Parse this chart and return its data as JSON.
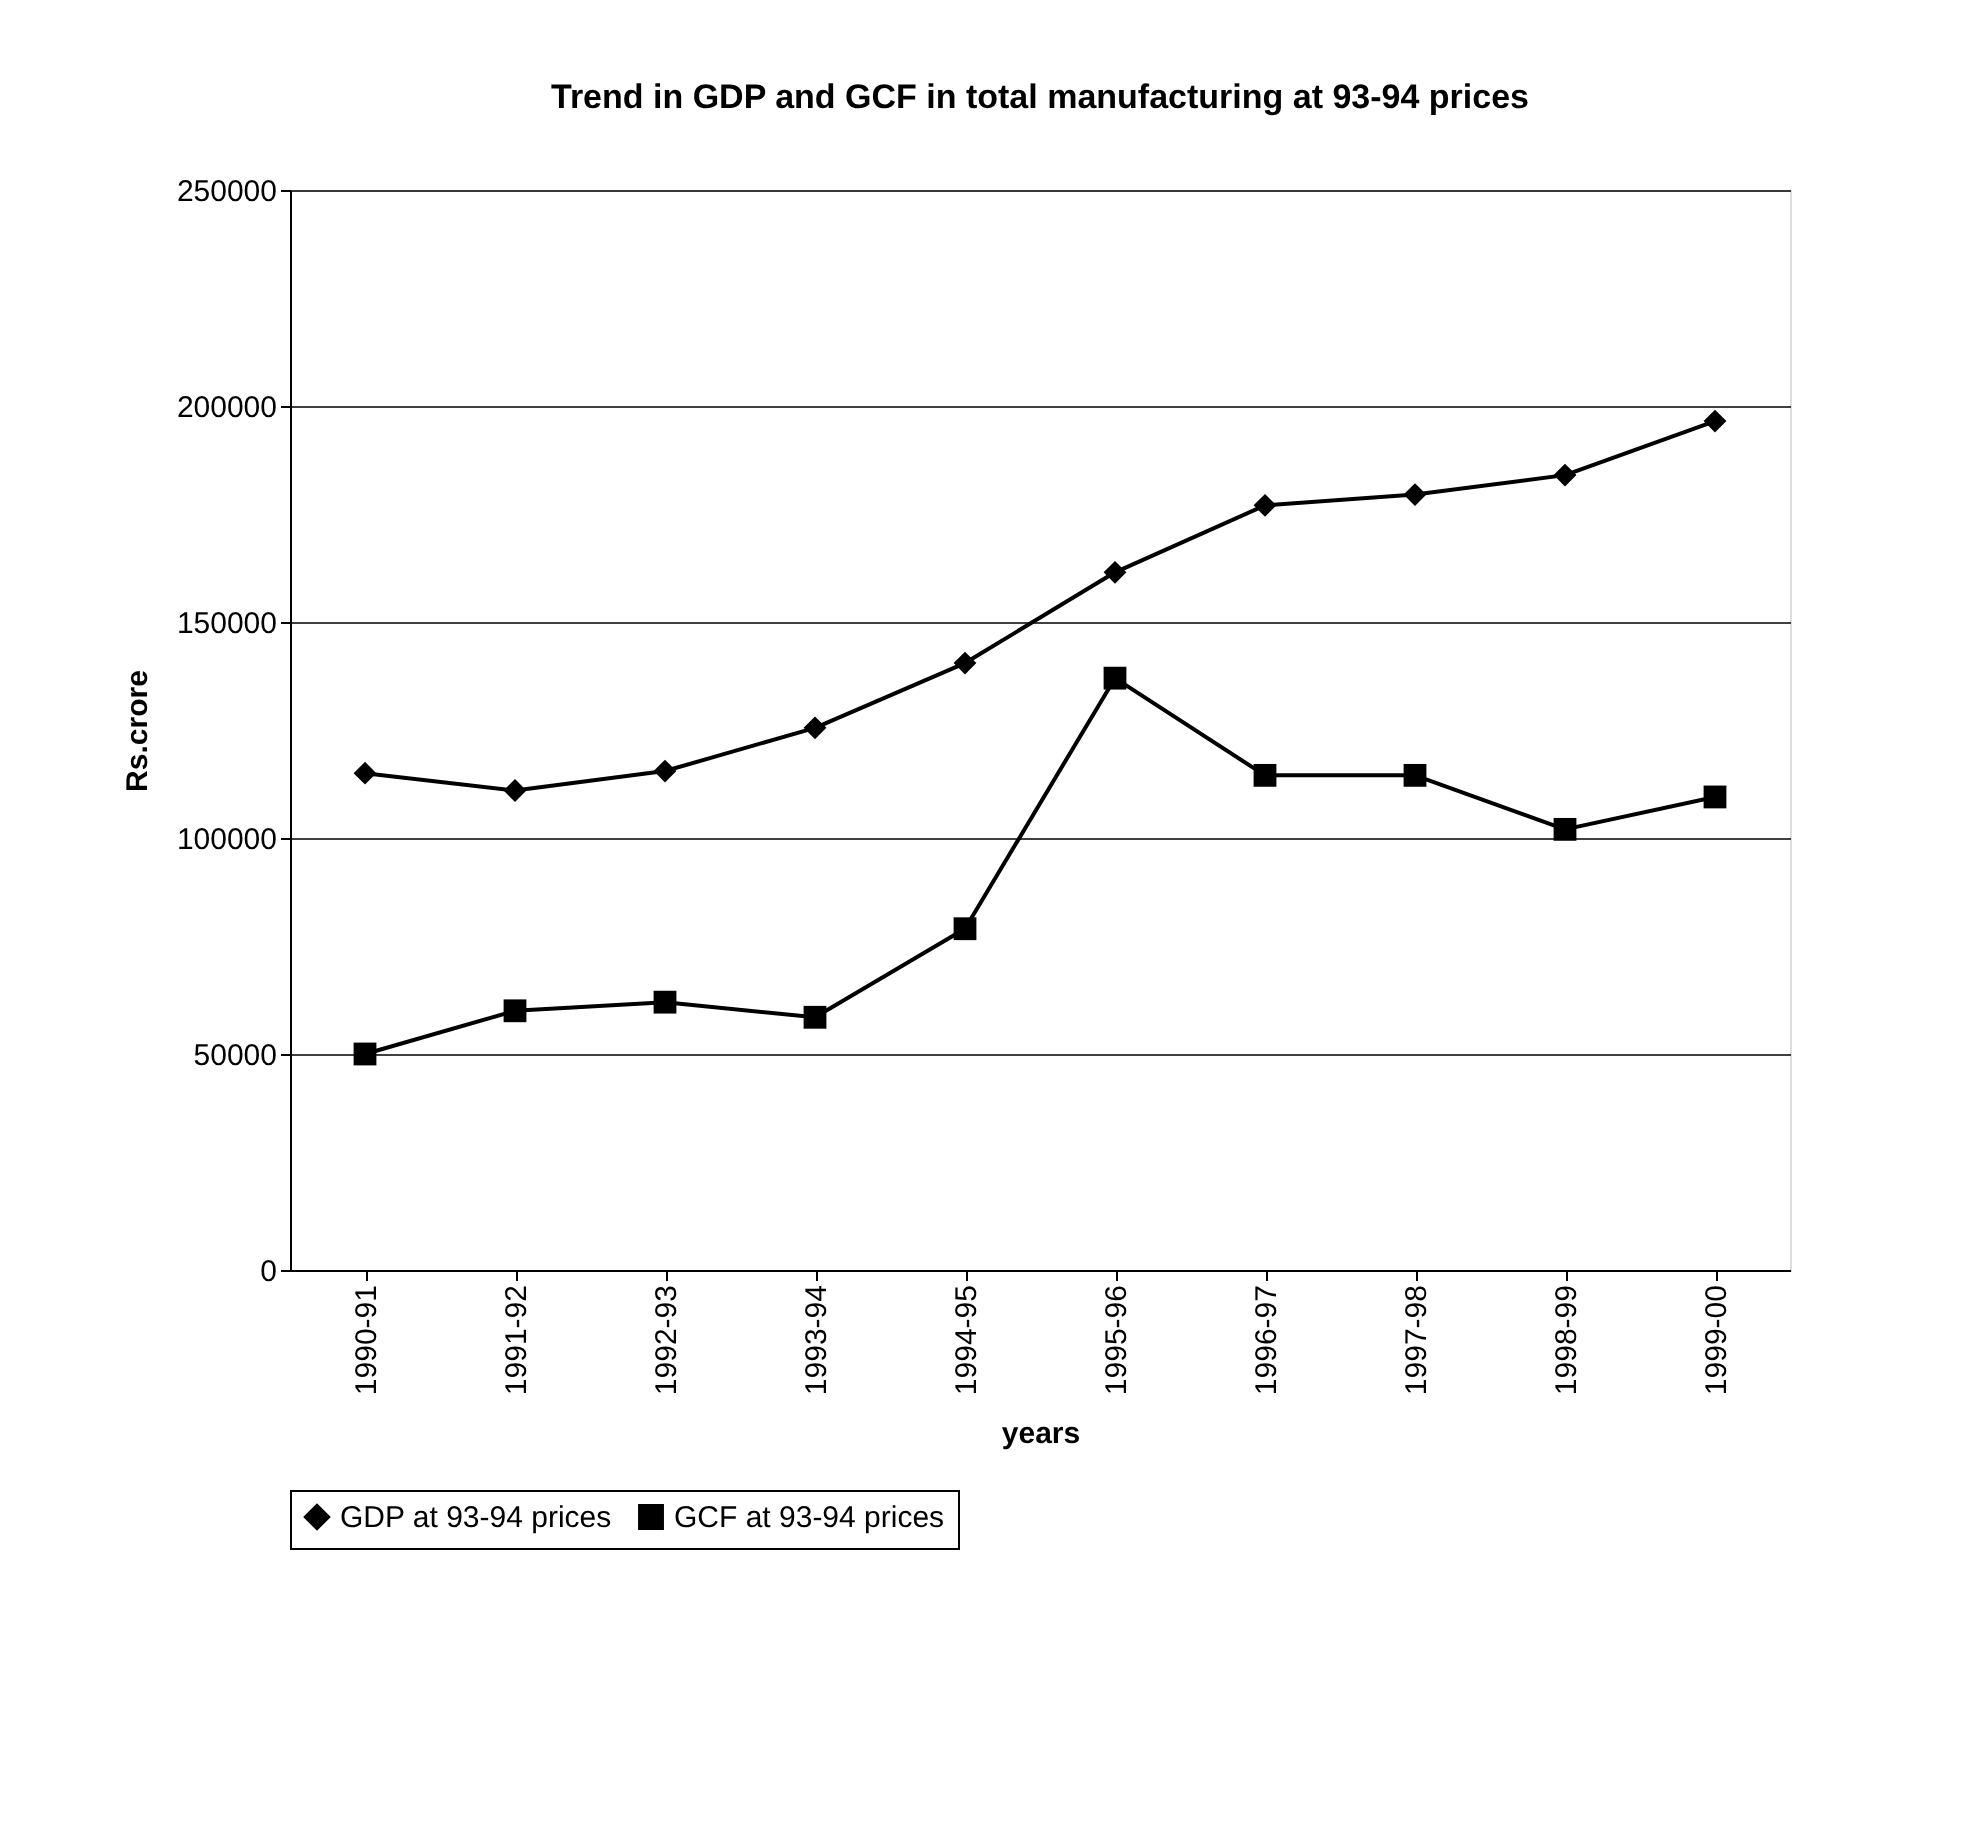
{
  "chart_data": {
    "type": "line",
    "title": "Trend in GDP and GCF in total manufacturing at 93-94 prices",
    "xlabel": "years",
    "ylabel": "Rs.crore",
    "categories": [
      "1990-91",
      "1991-92",
      "1992-93",
      "1993-94",
      "1994-95",
      "1995-96",
      "1996-97",
      "1997-98",
      "1998-99",
      "1999-00"
    ],
    "series": [
      {
        "name": "GDP at 93-94 prices",
        "color": "#000000",
        "marker": "diamond",
        "values": [
          115000,
          111000,
          115500,
          125500,
          140500,
          161500,
          177000,
          179500,
          184000,
          196500
        ]
      },
      {
        "name": "GCF at 93-94 prices",
        "color": "#000000",
        "marker": "square",
        "values": [
          50000,
          60000,
          62000,
          58500,
          79000,
          137000,
          114500,
          114500,
          102000,
          109500
        ]
      }
    ],
    "ylim": [
      0,
      250000
    ],
    "yticks": [
      0,
      50000,
      100000,
      150000,
      200000,
      250000
    ],
    "grid": "y",
    "legend": "bottom",
    "line_style": "solid"
  }
}
